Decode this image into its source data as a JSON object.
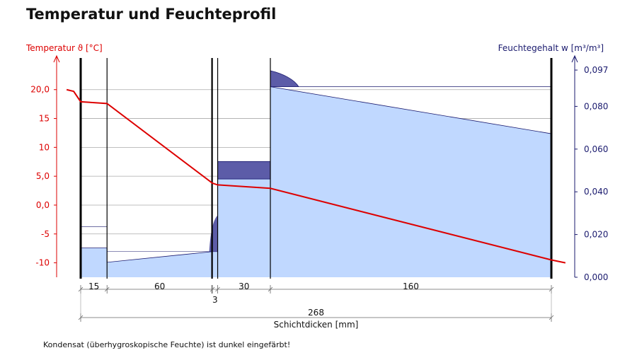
{
  "title": "Temperatur und Feuchteprofil",
  "note": "Kondensat (überhygroskopische Feuchte) ist dunkel eingefärbt!",
  "colors": {
    "temperature": "#dd0000",
    "moisture_axis": "#1a1a6e",
    "moisture_fill": "#c0d8ff",
    "condensate_fill": "#5c5ca8",
    "grid": "#aaaaaa"
  },
  "chart_data": {
    "type": "line",
    "title": "Temperatur und Feuchteprofil",
    "xlabel": "Schichtdicken [mm]",
    "left_axis": {
      "label": "Temperatur ϑ [°C]",
      "ylim": [
        -12.5,
        24.5
      ],
      "ticks": [
        20,
        15,
        10,
        5,
        0,
        -5,
        -10
      ],
      "tick_labels": [
        "20,0",
        "15",
        "10",
        "5,0",
        "0,0",
        "-5",
        "-10"
      ]
    },
    "right_axis": {
      "label": "Feuchtegehalt  w [m³/m³]",
      "ylim": [
        0,
        0.1
      ],
      "ticks": [
        0,
        0.02,
        0.04,
        0.06,
        0.08,
        0.097
      ],
      "tick_labels": [
        "0,000",
        "0,020",
        "0,040",
        "0,060",
        "0,080",
        "0,097"
      ]
    },
    "layers": [
      {
        "thickness": 15,
        "label": "15"
      },
      {
        "thickness": 60,
        "label": "60"
      },
      {
        "thickness": 3,
        "label": "3"
      },
      {
        "thickness": 30,
        "label": "30"
      },
      {
        "thickness": 160,
        "label": "160"
      }
    ],
    "total_thickness": {
      "value": 268,
      "label": "268"
    },
    "series": [
      {
        "name": "Temperatur",
        "axis": "left",
        "x": [
          -8,
          -4,
          0,
          15,
          75,
          78,
          108,
          268,
          276
        ],
        "y": [
          20.0,
          19.7,
          17.9,
          17.6,
          3.8,
          3.5,
          2.9,
          -9.5,
          -10.0
        ]
      },
      {
        "name": "Feuchtegehalt",
        "axis": "right",
        "x": [
          0,
          15,
          15,
          75,
          75,
          78,
          78,
          108,
          108,
          268
        ],
        "y": [
          0.0137,
          0.0137,
          0.007,
          0.012,
          0.012,
          0.012,
          0.046,
          0.046,
          0.0892,
          0.0672
        ]
      }
    ],
    "condensate_regions": [
      {
        "layer": "30",
        "w_from": 0.046,
        "w_to": 0.0542
      },
      {
        "layer": "160",
        "w_from": 0.0892,
        "w_to": 0.0967
      }
    ],
    "grid": true
  }
}
